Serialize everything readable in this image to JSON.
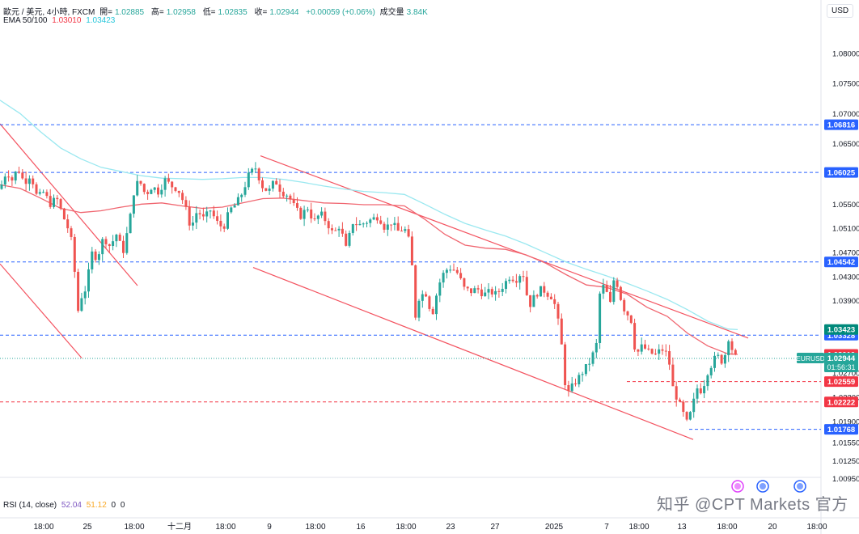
{
  "header": {
    "symbol_title": "歐元 / 美元, 4小時, FXCM",
    "ohlc": [
      {
        "label": "開=",
        "value": "1.02885"
      },
      {
        "label": "高=",
        "value": "1.02958"
      },
      {
        "label": "低=",
        "value": "1.02835"
      },
      {
        "label": "收=",
        "value": "1.02944"
      }
    ],
    "change": "+0.00059 (+0.06%)",
    "volume_label": "成交量",
    "volume_value": "3.84K",
    "ema_label": "EMA 50/100",
    "ema50_value": "1.03010",
    "ema100_value": "1.03423",
    "currency_button": "USD"
  },
  "rsi": {
    "label": "RSI (14, close)",
    "value1": "52.04",
    "value2": "51.12",
    "value3": "0",
    "value4": "0"
  },
  "watermark": "知乎 @CPT Markets 官方",
  "colors": {
    "up": "#26a69a",
    "down": "#ef5350",
    "ema50": "#f06670",
    "ema100": "#9ae8f0",
    "support_line": "#2962ff",
    "resistance_line": "#f23645",
    "trend_line": "#f23645"
  },
  "chart_data": {
    "type": "candlestick",
    "timeframe": "4h",
    "y_range": [
      1.007,
      1.088
    ],
    "y_ticks": [
      "1.08000",
      "1.07500",
      "1.07000",
      "1.06500",
      "1.05500",
      "1.05100",
      "1.04700",
      "1.04300",
      "1.03900",
      "1.02700",
      "1.02300",
      "1.01900",
      "1.01550",
      "1.01250",
      "1.00950"
    ],
    "x_ticks": [
      "18:00",
      "25",
      "18:00",
      "十二月",
      "18:00",
      "9",
      "18:00",
      "16",
      "18:00",
      "23",
      "27",
      "2025",
      "7",
      "18:00",
      "13",
      "18:00",
      "20",
      "18:00"
    ],
    "horizontal_levels": [
      {
        "value": 1.06816,
        "label": "1.06816",
        "style": "dashed",
        "color": "#2962ff"
      },
      {
        "value": 1.06025,
        "label": "1.06025",
        "style": "dashed",
        "color": "#2962ff"
      },
      {
        "value": 1.04542,
        "label": "1.04542",
        "style": "dashed",
        "color": "#2962ff"
      },
      {
        "value": 1.03328,
        "label": "1.03328",
        "style": "dashed",
        "color": "#2962ff"
      },
      {
        "value": 1.02559,
        "label": "1.02559",
        "style": "dashed",
        "color": "#f23645"
      },
      {
        "value": 1.02222,
        "label": "1.02222",
        "style": "dashed",
        "color": "#f23645"
      },
      {
        "value": 1.01768,
        "label": "1.01768",
        "style": "dashed",
        "color": "#2962ff"
      }
    ],
    "price_labels": [
      {
        "value": 1.03423,
        "text": "1.03423",
        "bg": "#00897b"
      },
      {
        "value": 1.0301,
        "text": "1.03010",
        "bg": "#f23645"
      },
      {
        "value": 1.02944,
        "symbol": "EURUSD",
        "text": "1.02944",
        "countdown": "01:56:31",
        "bg": "#26a69a"
      }
    ],
    "last_price": 1.02944,
    "ema50_points": [
      [
        0,
        1.0582
      ],
      [
        25,
        1.0576
      ],
      [
        50,
        1.056
      ],
      [
        75,
        1.0543
      ],
      [
        100,
        1.0536
      ],
      [
        125,
        1.0539
      ],
      [
        150,
        1.0545
      ],
      [
        175,
        1.055
      ],
      [
        200,
        1.0552
      ],
      [
        225,
        1.0547
      ],
      [
        250,
        1.0543
      ],
      [
        275,
        1.0545
      ],
      [
        300,
        1.0552
      ],
      [
        325,
        1.0559
      ],
      [
        350,
        1.056
      ],
      [
        375,
        1.0556
      ],
      [
        400,
        1.0552
      ],
      [
        425,
        1.0551
      ],
      [
        450,
        1.0549
      ],
      [
        475,
        1.0549
      ],
      [
        500,
        1.0547
      ],
      [
        525,
        1.0525
      ],
      [
        550,
        1.05
      ],
      [
        575,
        1.0482
      ],
      [
        600,
        1.0477
      ],
      [
        625,
        1.0475
      ],
      [
        650,
        1.0466
      ],
      [
        675,
        1.0452
      ],
      [
        700,
        1.0433
      ],
      [
        725,
        1.0416
      ],
      [
        750,
        1.0412
      ],
      [
        775,
        1.0401
      ],
      [
        800,
        1.0379
      ],
      [
        825,
        1.0364
      ],
      [
        850,
        1.0336
      ],
      [
        875,
        1.0315
      ],
      [
        900,
        1.0302
      ],
      [
        912,
        1.0301
      ]
    ],
    "ema100_points": [
      [
        0,
        1.0722
      ],
      [
        25,
        1.07
      ],
      [
        50,
        1.067
      ],
      [
        75,
        1.0643
      ],
      [
        100,
        1.0625
      ],
      [
        125,
        1.0611
      ],
      [
        150,
        1.0604
      ],
      [
        175,
        1.0597
      ],
      [
        200,
        1.0593
      ],
      [
        225,
        1.0592
      ],
      [
        250,
        1.0591
      ],
      [
        275,
        1.0592
      ],
      [
        300,
        1.0594
      ],
      [
        325,
        1.0594
      ],
      [
        350,
        1.0591
      ],
      [
        375,
        1.0586
      ],
      [
        400,
        1.058
      ],
      [
        425,
        1.0575
      ],
      [
        450,
        1.0571
      ],
      [
        475,
        1.0569
      ],
      [
        500,
        1.0566
      ],
      [
        525,
        1.055
      ],
      [
        550,
        1.0533
      ],
      [
        575,
        1.0518
      ],
      [
        600,
        1.0507
      ],
      [
        625,
        1.0497
      ],
      [
        650,
        1.0484
      ],
      [
        675,
        1.0469
      ],
      [
        700,
        1.0454
      ],
      [
        725,
        1.0442
      ],
      [
        750,
        1.0431
      ],
      [
        775,
        1.0419
      ],
      [
        800,
        1.0406
      ],
      [
        825,
        1.0392
      ],
      [
        850,
        1.0375
      ],
      [
        875,
        1.0356
      ],
      [
        900,
        1.0343
      ],
      [
        912,
        1.0342
      ]
    ],
    "trend_lines": [
      {
        "from": [
          0,
          1.0683
        ],
        "to": [
          170,
          1.0415
        ]
      },
      {
        "from": [
          0,
          1.0451
        ],
        "to": [
          101,
          1.0295
        ]
      },
      {
        "from": [
          322,
          1.063
        ],
        "to": [
          925,
          1.0328
        ]
      },
      {
        "from": [
          313,
          1.0445
        ],
        "to": [
          857,
          1.016
        ]
      }
    ],
    "candle_path": [
      [
        0,
        1.0575
      ],
      [
        8,
        1.0605
      ],
      [
        15,
        1.059
      ],
      [
        22,
        1.061
      ],
      [
        30,
        1.0585
      ],
      [
        38,
        1.06
      ],
      [
        46,
        1.056
      ],
      [
        54,
        1.057
      ],
      [
        62,
        1.055
      ],
      [
        70,
        1.056
      ],
      [
        78,
        1.053
      ],
      [
        84,
        1.051
      ],
      [
        90,
        1.048
      ],
      [
        96,
        1.037
      ],
      [
        100,
        1.0395
      ],
      [
        106,
        1.041
      ],
      [
        114,
        1.047
      ],
      [
        120,
        1.046
      ],
      [
        128,
        1.0495
      ],
      [
        136,
        1.048
      ],
      [
        144,
        1.05
      ],
      [
        152,
        1.047
      ],
      [
        160,
        1.052
      ],
      [
        166,
        1.0575
      ],
      [
        172,
        1.059
      ],
      [
        180,
        1.0565
      ],
      [
        188,
        1.058
      ],
      [
        196,
        1.057
      ],
      [
        204,
        1.059
      ],
      [
        212,
        1.058
      ],
      [
        220,
        1.0575
      ],
      [
        228,
        1.055
      ],
      [
        236,
        1.051
      ],
      [
        244,
        1.054
      ],
      [
        252,
        1.0525
      ],
      [
        260,
        1.054
      ],
      [
        268,
        1.052
      ],
      [
        276,
        1.051
      ],
      [
        284,
        1.054
      ],
      [
        292,
        1.055
      ],
      [
        300,
        1.057
      ],
      [
        308,
        1.06
      ],
      [
        316,
        1.061
      ],
      [
        324,
        1.058
      ],
      [
        332,
        1.057
      ],
      [
        340,
        1.059
      ],
      [
        348,
        1.057
      ],
      [
        356,
        1.0565
      ],
      [
        364,
        1.0545
      ],
      [
        372,
        1.053
      ],
      [
        380,
        1.0545
      ],
      [
        388,
        1.052
      ],
      [
        396,
        1.0535
      ],
      [
        404,
        1.052
      ],
      [
        412,
        1.05
      ],
      [
        420,
        1.0515
      ],
      [
        428,
        1.0475
      ],
      [
        436,
        1.052
      ],
      [
        444,
        1.0515
      ],
      [
        452,
        1.052
      ],
      [
        460,
        1.0525
      ],
      [
        468,
        1.053
      ],
      [
        476,
        1.051
      ],
      [
        484,
        1.052
      ],
      [
        492,
        1.0505
      ],
      [
        500,
        1.051
      ],
      [
        508,
        1.048
      ],
      [
        513,
        1.036
      ],
      [
        518,
        1.0395
      ],
      [
        526,
        1.0405
      ],
      [
        534,
        1.0365
      ],
      [
        542,
        1.0415
      ],
      [
        550,
        1.044
      ],
      [
        558,
        1.0445
      ],
      [
        566,
        1.0435
      ],
      [
        574,
        1.041
      ],
      [
        582,
        1.0405
      ],
      [
        590,
        1.041
      ],
      [
        598,
        1.04
      ],
      [
        606,
        1.0405
      ],
      [
        614,
        1.04
      ],
      [
        622,
        1.0415
      ],
      [
        630,
        1.043
      ],
      [
        638,
        1.0425
      ],
      [
        646,
        1.044
      ],
      [
        654,
        1.038
      ],
      [
        662,
        1.04
      ],
      [
        670,
        1.041
      ],
      [
        678,
        1.04
      ],
      [
        684,
        1.0395
      ],
      [
        690,
        1.0355
      ],
      [
        696,
        1.03
      ],
      [
        700,
        1.023
      ],
      [
        706,
        1.0245
      ],
      [
        714,
        1.026
      ],
      [
        722,
        1.0275
      ],
      [
        730,
        1.029
      ],
      [
        738,
        1.032
      ],
      [
        742,
        1.041
      ],
      [
        748,
        1.0415
      ],
      [
        754,
        1.038
      ],
      [
        760,
        1.0435
      ],
      [
        766,
        1.04
      ],
      [
        772,
        1.0375
      ],
      [
        780,
        1.036
      ],
      [
        786,
        1.03
      ],
      [
        794,
        1.0315
      ],
      [
        802,
        1.0305
      ],
      [
        810,
        1.03
      ],
      [
        818,
        1.031
      ],
      [
        826,
        1.03
      ],
      [
        832,
        1.0245
      ],
      [
        838,
        1.0225
      ],
      [
        844,
        1.0205
      ],
      [
        850,
        1.0185
      ],
      [
        856,
        1.0215
      ],
      [
        862,
        1.0245
      ],
      [
        868,
        1.024
      ],
      [
        874,
        1.027
      ],
      [
        880,
        1.0285
      ],
      [
        886,
        1.03
      ],
      [
        892,
        1.029
      ],
      [
        898,
        1.0305
      ],
      [
        902,
        1.034
      ],
      [
        906,
        1.03
      ],
      [
        912,
        1.0294
      ]
    ]
  }
}
